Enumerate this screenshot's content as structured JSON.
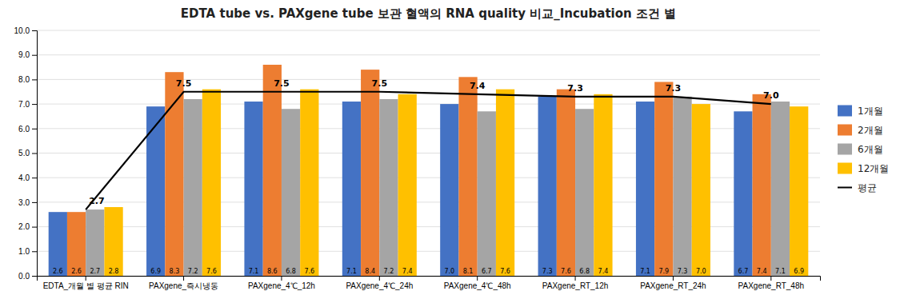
{
  "chart_data": {
    "type": "bar",
    "title": "EDTA tube vs. PAXgene tube 보관 혈액의 RNA quality 비교_Incubation 조건 별",
    "categories": [
      "EDTA_개월 별 평균 RIN",
      "PAXgene_즉시냉동",
      "PAXgene_4℃_12h",
      "PAXgene_4℃_24h",
      "PAXgene_4℃_48h",
      "PAXgene_RT_12h",
      "PAXgene_RT_24h",
      "PAXgene_RT_48h"
    ],
    "series": [
      {
        "name": "1개월",
        "color": "#4472C4",
        "values": [
          2.6,
          6.9,
          7.1,
          7.1,
          7.0,
          7.3,
          7.1,
          6.7
        ],
        "value_labels": [
          "2.6",
          "6.9",
          "7.1",
          "7.1",
          "7.0",
          "7.3",
          "7.1",
          "6.7"
        ],
        "data_labels": true
      },
      {
        "name": "2개월",
        "color": "#ED7D31",
        "values": [
          2.6,
          8.3,
          8.6,
          8.4,
          8.1,
          7.6,
          7.9,
          7.4
        ],
        "value_labels": [
          "2.6",
          "8.3",
          "8.6",
          "8.4",
          "8.1",
          "7.6",
          "7.9",
          "7.4"
        ],
        "data_labels": true
      },
      {
        "name": "6개월",
        "color": "#A5A5A5",
        "values": [
          2.7,
          7.2,
          6.8,
          7.2,
          6.7,
          6.8,
          7.3,
          7.1
        ],
        "value_labels": [
          "2.7",
          "7.2",
          "6.8",
          "7.2",
          "6.7",
          "6.8",
          "7.3",
          "7.1"
        ],
        "data_labels": true
      },
      {
        "name": "12개월",
        "color": "#FFC000",
        "values": [
          2.8,
          7.6,
          7.6,
          7.4,
          7.6,
          7.4,
          7.0,
          6.9
        ],
        "value_labels": [
          "2.8",
          "7.6",
          "7.6",
          "7.4",
          "7.6",
          "7.4",
          "7.0",
          "6.9"
        ],
        "data_labels": true
      },
      {
        "name": "평균",
        "type": "line",
        "color": "#000000",
        "values": [
          2.7,
          7.5,
          7.5,
          7.5,
          7.4,
          7.3,
          7.3,
          7.0
        ],
        "value_labels": [
          "2.7",
          "7.5",
          "7.5",
          "7.5",
          "7.4",
          "7.3",
          "7.3",
          "7.0"
        ],
        "data_labels": true
      }
    ],
    "ylim": [
      0,
      10
    ],
    "yticks": [
      {
        "value": 0,
        "label": "0.0"
      },
      {
        "value": 1,
        "label": "1.0"
      },
      {
        "value": 2,
        "label": "2.0"
      },
      {
        "value": 3,
        "label": "3.0"
      },
      {
        "value": 4,
        "label": "4.0"
      },
      {
        "value": 5,
        "label": "5.0"
      },
      {
        "value": 6,
        "label": "6.0"
      },
      {
        "value": 7,
        "label": "7.0"
      },
      {
        "value": 8,
        "label": "8.0"
      },
      {
        "value": 9,
        "label": "9.0"
      },
      {
        "value": 10,
        "label": "10.0"
      }
    ],
    "grid": true,
    "legend": "right"
  }
}
